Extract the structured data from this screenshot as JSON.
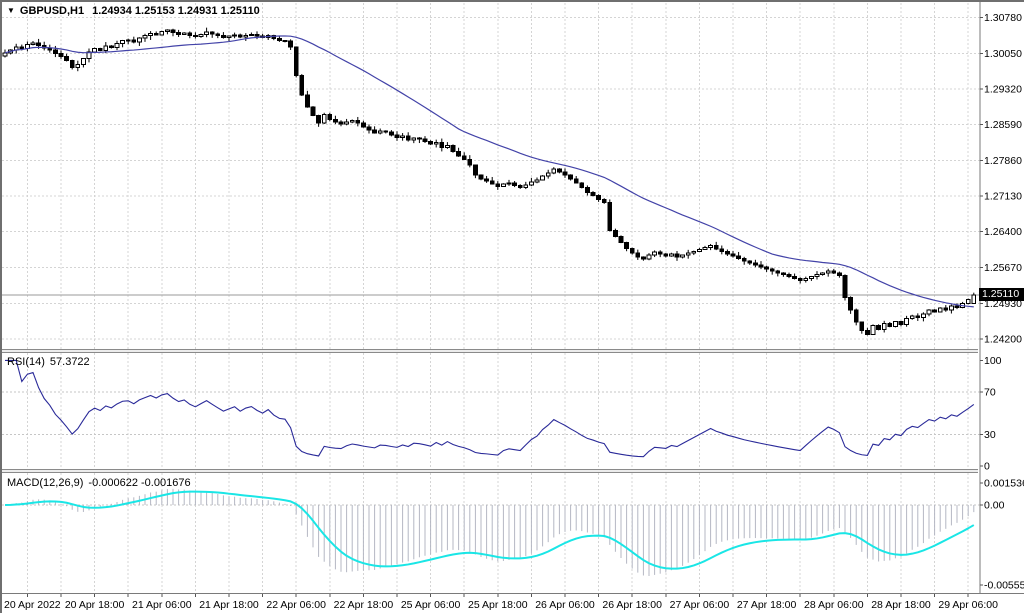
{
  "ui": {
    "symbol_label": "GBPUSD,H1",
    "ohlc_label": "1.24934 1.25153 1.24931 1.25110",
    "menu_arrow": "▼",
    "rsi_label": "RSI(14)",
    "rsi_value": "57.3722",
    "macd_label": "MACD(12,26,9)",
    "macd_values": "-0.000622 -0.001676"
  },
  "chart_data": {
    "type": "candlestick",
    "symbol": "GBPUSD",
    "timeframe": "H1",
    "ohlc_current": {
      "open": "1.24934",
      "high": "1.25153",
      "low": "1.24931",
      "close": "1.25110"
    },
    "x_axis": {
      "labels": [
        "20 Apr 2022",
        "20 Apr 18:00",
        "21 Apr 06:00",
        "21 Apr 18:00",
        "22 Apr 06:00",
        "22 Apr 18:00",
        "25 Apr 06:00",
        "25 Apr 18:00",
        "26 Apr 06:00",
        "26 Apr 18:00",
        "27 Apr 06:00",
        "27 Apr 18:00",
        "28 Apr 06:00",
        "28 Apr 18:00",
        "29 Apr 06:00"
      ],
      "first_label_candle": 4,
      "candles_per_label": 12,
      "grid_step_candles": 6
    },
    "price_panel": {
      "y_ticks": [
        "1.30780",
        "1.30050",
        "1.29320",
        "1.28590",
        "1.27860",
        "1.27130",
        "1.26400",
        "1.25670",
        "1.24930",
        "1.24200"
      ],
      "y_range": [
        1.24,
        1.3108
      ],
      "current_price": "1.25110",
      "ma": {
        "type": "SMA",
        "period": 30
      },
      "first_open": 1.3,
      "closes": [
        1.3006,
        1.3012,
        1.3018,
        1.3015,
        1.3023,
        1.3026,
        1.3021,
        1.3016,
        1.3012,
        1.3005,
        1.2999,
        1.299,
        1.2976,
        1.2982,
        1.2994,
        1.3008,
        1.3015,
        1.3011,
        1.302,
        1.3017,
        1.3025,
        1.3031,
        1.3032,
        1.3028,
        1.3036,
        1.3041,
        1.3046,
        1.3043,
        1.305,
        1.3053,
        1.3048,
        1.3044,
        1.3047,
        1.3042,
        1.3039,
        1.3044,
        1.3049,
        1.3045,
        1.3041,
        1.3037,
        1.304,
        1.3043,
        1.3038,
        1.3042,
        1.3044,
        1.304,
        1.3037,
        1.3041,
        1.3035,
        1.3031,
        1.303,
        1.3018,
        1.296,
        1.292,
        1.2895,
        1.2878,
        1.2862,
        1.288,
        1.287,
        1.2864,
        1.286,
        1.2865,
        1.2868,
        1.2862,
        1.2854,
        1.2848,
        1.2842,
        1.2846,
        1.2844,
        1.2838,
        1.2833,
        1.2836,
        1.2828,
        1.2832,
        1.283,
        1.2825,
        1.2819,
        1.2823,
        1.2812,
        1.2816,
        1.2804,
        1.2795,
        1.2788,
        1.2776,
        1.2756,
        1.2748,
        1.2744,
        1.2738,
        1.2733,
        1.2738,
        1.274,
        1.2735,
        1.273,
        1.2736,
        1.2742,
        1.2746,
        1.2754,
        1.276,
        1.2768,
        1.2762,
        1.2756,
        1.2748,
        1.274,
        1.273,
        1.272,
        1.2714,
        1.2706,
        1.27,
        1.2642,
        1.263,
        1.2618,
        1.2606,
        1.2596,
        1.2588,
        1.2584,
        1.2592,
        1.2598,
        1.2594,
        1.259,
        1.2594,
        1.2588,
        1.2592,
        1.2596,
        1.26,
        1.2604,
        1.2608,
        1.2612,
        1.2605,
        1.26,
        1.2594,
        1.259,
        1.2585,
        1.258,
        1.2576,
        1.2572,
        1.2568,
        1.2564,
        1.256,
        1.2556,
        1.2552,
        1.2548,
        1.2544,
        1.254,
        1.2544,
        1.2548,
        1.2552,
        1.2556,
        1.256,
        1.2556,
        1.255,
        1.2505,
        1.248,
        1.2455,
        1.2438,
        1.243,
        1.2448,
        1.244,
        1.2452,
        1.2446,
        1.2456,
        1.245,
        1.2462,
        1.2468,
        1.2464,
        1.2472,
        1.248,
        1.2476,
        1.2484,
        1.248,
        1.2488,
        1.2485,
        1.2493,
        1.2501,
        1.2511
      ]
    },
    "rsi_panel": {
      "name": "RSI",
      "period": 14,
      "last_value": 57.3722,
      "y_ticks": [
        "100",
        "70",
        "30",
        "0"
      ],
      "levels": [
        70,
        30
      ],
      "y_range": [
        -2.84,
        107.0
      ]
    },
    "macd_panel": {
      "name": "MACD",
      "params": [
        12,
        26,
        9
      ],
      "last_values": [
        -0.000622,
        -0.001676
      ],
      "y_ticks": [
        "0.001536",
        "0.00",
        "-0.005557"
      ],
      "y_range": [
        -0.006116,
        0.002224
      ]
    },
    "colors": {
      "ma_line": "#4343a8",
      "rsi_line": "#2a2a99",
      "macd_signal": "#1ae6e6",
      "macd_hist": "#b4b7c3",
      "bull_candle": "#ffffff",
      "bear_candle": "#000000",
      "grid": "#d4d4d4",
      "bid_line": "#9a9a9a",
      "price_tag_bg": "#000000",
      "axis_line": "#7a7a7a"
    }
  }
}
